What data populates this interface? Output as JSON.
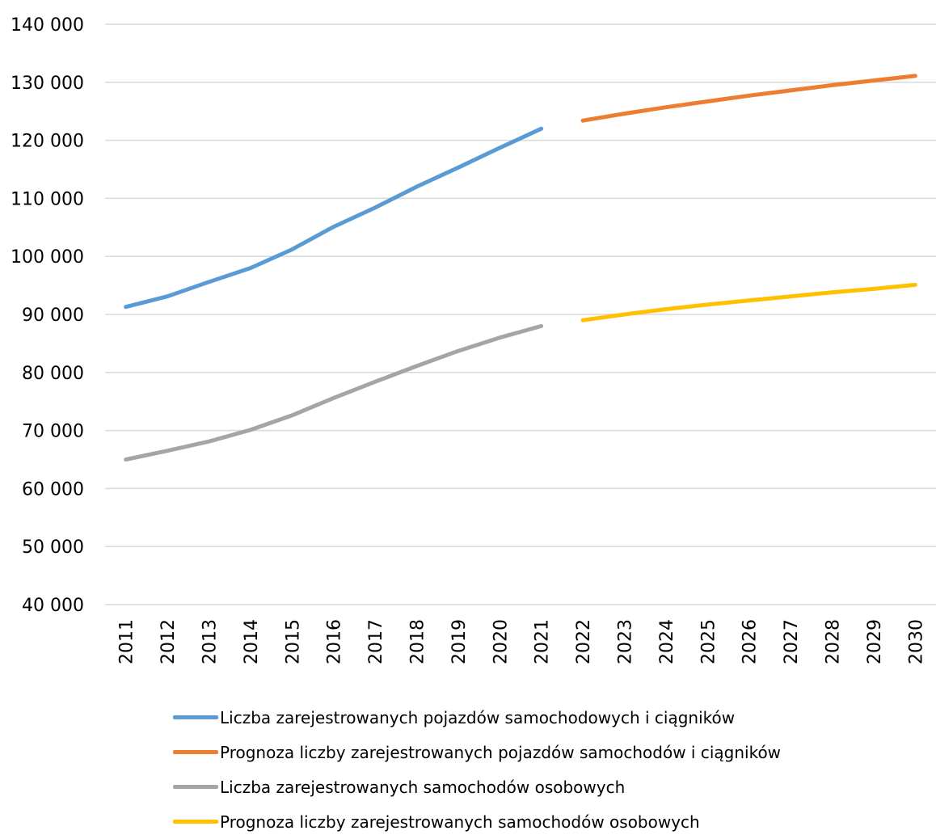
{
  "chart_data": {
    "type": "line",
    "x": [
      2011,
      2012,
      2013,
      2014,
      2015,
      2016,
      2017,
      2018,
      2019,
      2020,
      2021,
      2022,
      2023,
      2024,
      2025,
      2026,
      2027,
      2028,
      2029,
      2030
    ],
    "x_tick_labels": [
      "2011",
      "2012",
      "2013",
      "2014",
      "2015",
      "2016",
      "2017",
      "2018",
      "2019",
      "2020",
      "2021",
      "2022",
      "2023",
      "2024",
      "2025",
      "2026",
      "2027",
      "2028",
      "2029",
      "2030"
    ],
    "ylim": [
      40000,
      140000
    ],
    "y_ticks": [
      40000,
      50000,
      60000,
      70000,
      80000,
      90000,
      100000,
      110000,
      120000,
      130000,
      140000
    ],
    "y_tick_labels": [
      "40 000",
      "50 000",
      "60 000",
      "70 000",
      "80 000",
      "90 000",
      "100 000",
      "110 000",
      "120 000",
      "130 000",
      "140 000"
    ],
    "grid": true,
    "legend_position": "bottom",
    "series": [
      {
        "name": "Liczba zarejestrowanych pojazdów samochodowych i ciągników",
        "color": "#5b9bd5",
        "x": [
          2011,
          2012,
          2013,
          2014,
          2015,
          2016,
          2017,
          2018,
          2019,
          2020,
          2021
        ],
        "values": [
          91300,
          93100,
          95600,
          98000,
          101200,
          105100,
          108400,
          112000,
          115300,
          118700,
          122000
        ]
      },
      {
        "name": "Prognoza liczby zarejestrowanych pojazdów samochodów i ciągników",
        "color": "#ed7d31",
        "x": [
          2022,
          2023,
          2024,
          2025,
          2026,
          2027,
          2028,
          2029,
          2030
        ],
        "values": [
          123400,
          124600,
          125700,
          126700,
          127700,
          128600,
          129500,
          130300,
          131100
        ]
      },
      {
        "name": "Liczba zarejestrowanych samochodów osobowych",
        "color": "#a5a5a5",
        "x": [
          2011,
          2012,
          2013,
          2014,
          2015,
          2016,
          2017,
          2018,
          2019,
          2020,
          2021
        ],
        "values": [
          65000,
          66500,
          68100,
          70100,
          72600,
          75600,
          78400,
          81100,
          83700,
          86000,
          88000
        ]
      },
      {
        "name": "Prognoza liczby zarejestrowanych samochodów osobowych",
        "color": "#ffc000",
        "x": [
          2022,
          2023,
          2024,
          2025,
          2026,
          2027,
          2028,
          2029,
          2030
        ],
        "values": [
          89000,
          90000,
          90900,
          91700,
          92400,
          93100,
          93800,
          94400,
          95100
        ]
      }
    ]
  }
}
